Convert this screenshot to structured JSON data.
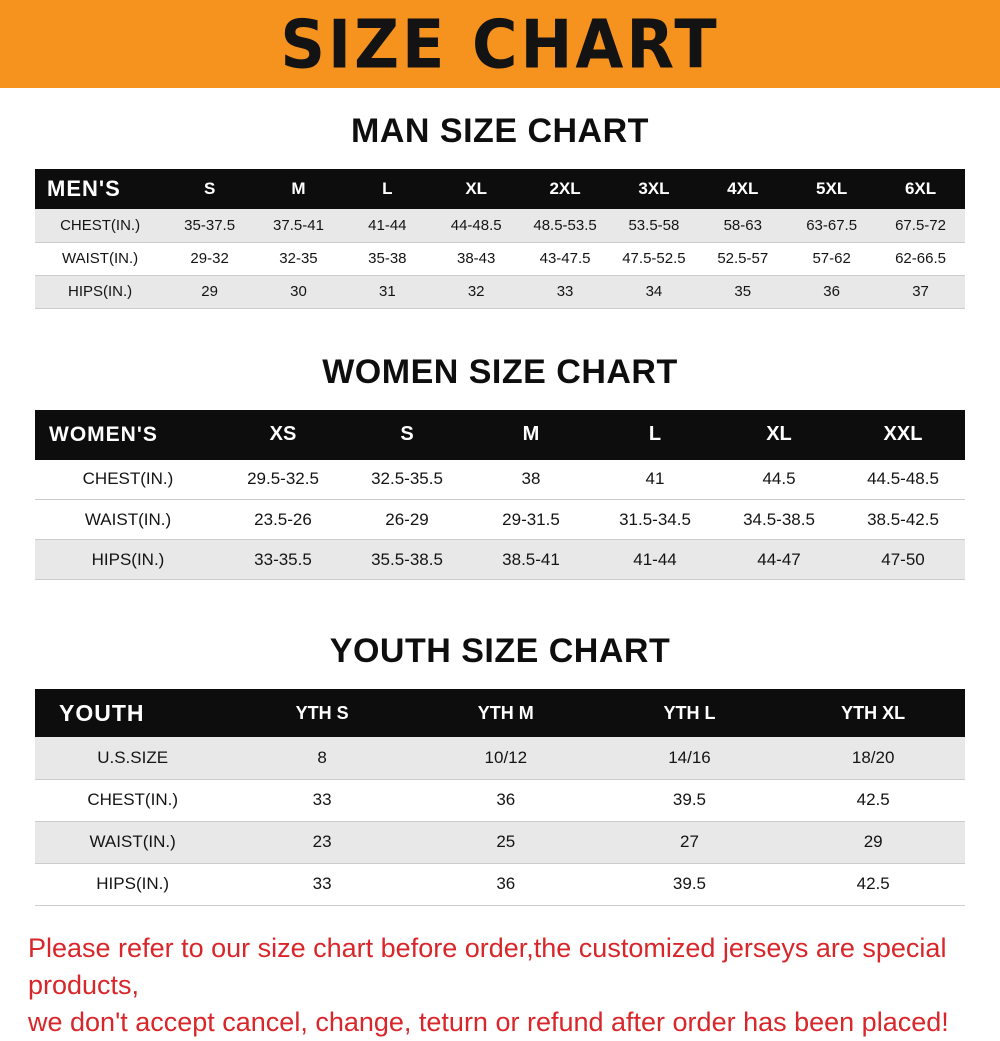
{
  "banner": {
    "title": "SIZE CHART",
    "bg_color": "#f6921e",
    "text_color": "#131313"
  },
  "men": {
    "heading": "MAN SIZE CHART",
    "header": [
      "MEN'S",
      "S",
      "M",
      "L",
      "XL",
      "2XL",
      "3XL",
      "4XL",
      "5XL",
      "6XL"
    ],
    "rows": [
      [
        "CHEST(IN.)",
        "35-37.5",
        "37.5-41",
        "41-44",
        "44-48.5",
        "48.5-53.5",
        "53.5-58",
        "58-63",
        "63-67.5",
        "67.5-72"
      ],
      [
        "WAIST(IN.)",
        "29-32",
        "32-35",
        "35-38",
        "38-43",
        "43-47.5",
        "47.5-52.5",
        "52.5-57",
        "57-62",
        "62-66.5"
      ],
      [
        "HIPS(IN.)",
        "29",
        "30",
        "31",
        "32",
        "33",
        "34",
        "35",
        "36",
        "37"
      ]
    ]
  },
  "women": {
    "heading": "WOMEN SIZE CHART",
    "header": [
      "WOMEN'S",
      "XS",
      "S",
      "M",
      "L",
      "XL",
      "XXL"
    ],
    "rows": [
      [
        "CHEST(IN.)",
        "29.5-32.5",
        "32.5-35.5",
        "38",
        "41",
        "44.5",
        "44.5-48.5"
      ],
      [
        "WAIST(IN.)",
        "23.5-26",
        "26-29",
        "29-31.5",
        "31.5-34.5",
        "34.5-38.5",
        "38.5-42.5"
      ],
      [
        "HIPS(IN.)",
        "33-35.5",
        "35.5-38.5",
        "38.5-41",
        "41-44",
        "44-47",
        "47-50"
      ]
    ]
  },
  "youth": {
    "heading": "YOUTH SIZE CHART",
    "header": [
      "YOUTH",
      "YTH S",
      "YTH M",
      "YTH L",
      "YTH XL"
    ],
    "rows": [
      [
        "U.S.SIZE",
        "8",
        "10/12",
        "14/16",
        "18/20"
      ],
      [
        "CHEST(IN.)",
        "33",
        "36",
        "39.5",
        "42.5"
      ],
      [
        "WAIST(IN.)",
        "23",
        "25",
        "27",
        "29"
      ],
      [
        "HIPS(IN.)",
        "33",
        "36",
        "39.5",
        "42.5"
      ]
    ]
  },
  "footer": {
    "line1": "Please refer to our size chart before order,the customized jerseys are special products,",
    "line2": "we don't accept cancel, change, teturn or refund after order has been placed!",
    "text_color": "#d8262a"
  }
}
